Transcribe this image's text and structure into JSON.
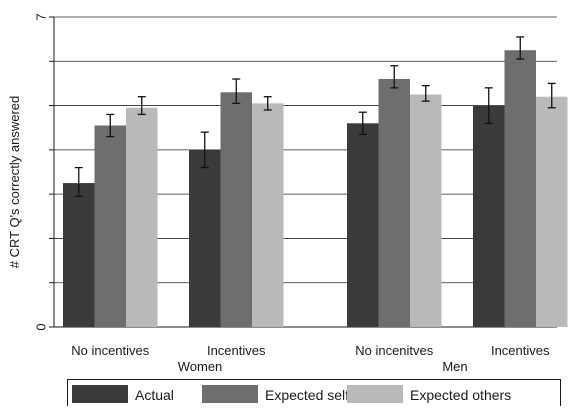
{
  "chart_data": {
    "type": "bar",
    "title": "",
    "ylabel": "# CRT Q's correctly answered",
    "xlabel": "",
    "ylim": [
      0,
      7
    ],
    "y_tick_labels": [
      {
        "value": 0,
        "label": "0"
      },
      {
        "value": 7,
        "label": "7"
      }
    ],
    "gridlines": [
      1,
      2,
      3,
      4,
      5,
      6,
      7
    ],
    "grid": true,
    "groups": [
      {
        "label": "Women",
        "conditions": [
          "No incentives",
          "Incentives"
        ]
      },
      {
        "label": "Men",
        "conditions": [
          "No incenitves",
          "Incentives"
        ]
      }
    ],
    "categories": [
      "No incentives",
      "Incentives",
      "No incenitves",
      "Incentives"
    ],
    "series": [
      {
        "name": "Actual",
        "color": "#3a3a3a",
        "values": [
          3.25,
          4.0,
          4.6,
          5.0
        ],
        "ci_low": [
          2.95,
          3.6,
          4.35,
          4.6
        ],
        "ci_high": [
          3.6,
          4.4,
          4.85,
          5.4
        ]
      },
      {
        "name": "Expected self",
        "color": "#6e6e6e",
        "values": [
          4.55,
          5.3,
          5.6,
          6.25
        ],
        "ci_low": [
          4.3,
          5.05,
          5.4,
          6.05
        ],
        "ci_high": [
          4.8,
          5.6,
          5.9,
          6.55
        ]
      },
      {
        "name": "Expected others",
        "color": "#b9b9b9",
        "values": [
          4.95,
          5.05,
          5.25,
          5.2
        ],
        "ci_low": [
          4.8,
          4.9,
          5.1,
          4.95
        ],
        "ci_high": [
          5.2,
          5.2,
          5.45,
          5.5
        ]
      }
    ],
    "legend": {
      "position": "bottom",
      "entries": [
        "Actual",
        "Expected self",
        "Expected others"
      ]
    }
  }
}
